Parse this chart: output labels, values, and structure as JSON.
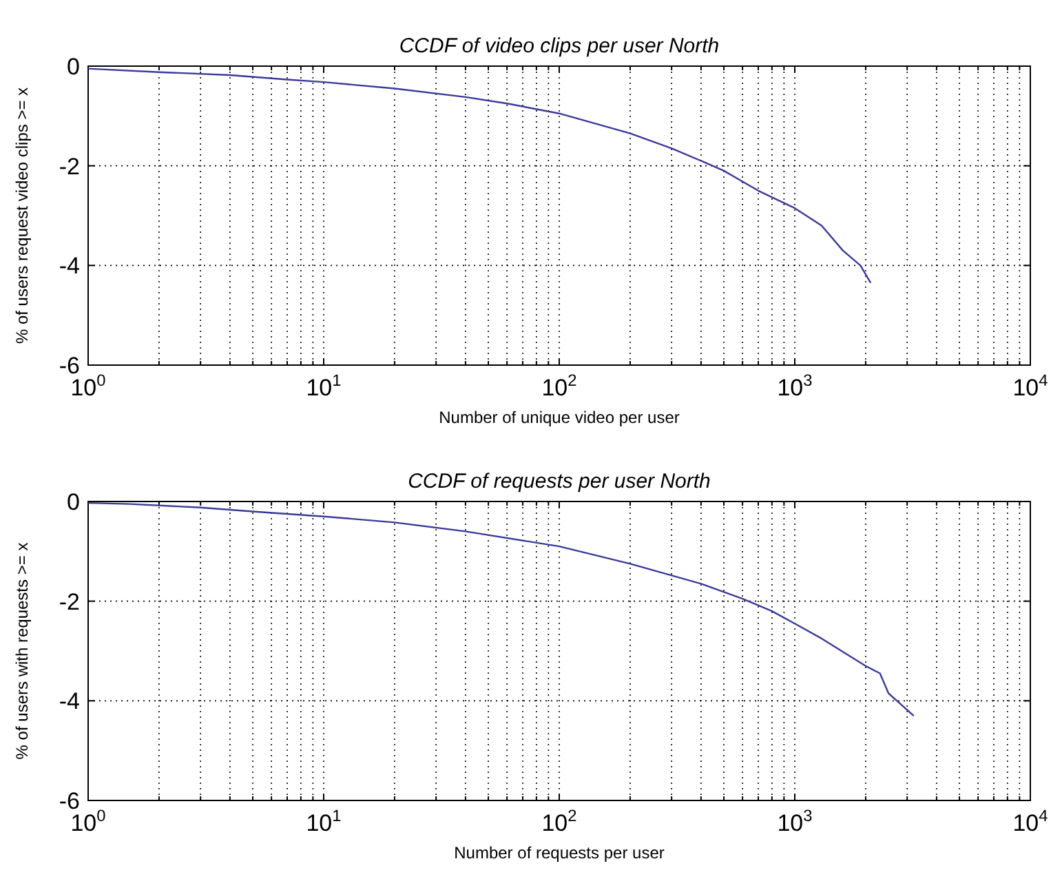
{
  "chart_data": [
    {
      "type": "line",
      "title": "CCDF of video clips per user North",
      "xlabel": "Number of unique video per user",
      "ylabel": "% of users request video clips >= x",
      "log": "x",
      "grid": true,
      "line_style": "solid",
      "xlim": [
        1,
        10000
      ],
      "ylim": [
        -6,
        0
      ],
      "xticks": [
        {
          "value": 1,
          "label": "10$^{0}$"
        },
        {
          "value": 2,
          "label": null
        },
        {
          "value": 3,
          "label": null
        },
        {
          "value": 4,
          "label": null
        },
        {
          "value": 5,
          "label": null
        },
        {
          "value": 6,
          "label": null
        },
        {
          "value": 7,
          "label": null
        },
        {
          "value": 8,
          "label": null
        },
        {
          "value": 9,
          "label": null
        },
        {
          "value": 10,
          "label": "10$^{1}$"
        },
        {
          "value": 20,
          "label": null
        },
        {
          "value": 30,
          "label": null
        },
        {
          "value": 40,
          "label": null
        },
        {
          "value": 50,
          "label": null
        },
        {
          "value": 60,
          "label": null
        },
        {
          "value": 70,
          "label": null
        },
        {
          "value": 80,
          "label": null
        },
        {
          "value": 90,
          "label": null
        },
        {
          "value": 100,
          "label": "10$^{2}$"
        },
        {
          "value": 200,
          "label": null
        },
        {
          "value": 300,
          "label": null
        },
        {
          "value": 400,
          "label": null
        },
        {
          "value": 500,
          "label": null
        },
        {
          "value": 600,
          "label": null
        },
        {
          "value": 700,
          "label": null
        },
        {
          "value": 800,
          "label": null
        },
        {
          "value": 900,
          "label": null
        },
        {
          "value": 1000,
          "label": "10$^{3}$"
        },
        {
          "value": 2000,
          "label": null
        },
        {
          "value": 3000,
          "label": null
        },
        {
          "value": 4000,
          "label": null
        },
        {
          "value": 5000,
          "label": null
        },
        {
          "value": 6000,
          "label": null
        },
        {
          "value": 7000,
          "label": null
        },
        {
          "value": 8000,
          "label": null
        },
        {
          "value": 9000,
          "label": null
        },
        {
          "value": 10000,
          "label": "10$^{4}$"
        }
      ],
      "yticks": [
        -6,
        -4,
        -2,
        0
      ],
      "series": [
        {
          "color": "#3a3a9a",
          "x": [
            1,
            2,
            4,
            7,
            10,
            20,
            40,
            60,
            100,
            200,
            300,
            400,
            500,
            700,
            1000,
            1300,
            1600,
            1900,
            2100
          ],
          "values": [
            -0.05,
            -0.12,
            -0.18,
            -0.27,
            -0.32,
            -0.45,
            -0.62,
            -0.75,
            -0.95,
            -1.35,
            -1.65,
            -1.9,
            -2.1,
            -2.5,
            -2.85,
            -3.2,
            -3.7,
            -4.0,
            -4.35
          ]
        }
      ]
    },
    {
      "type": "line",
      "title": "CCDF of requests per user North",
      "xlabel": "Number of requests per user",
      "ylabel": "% of users with requests >= x",
      "log": "x",
      "grid": true,
      "line_style": "solid",
      "xlim": [
        1,
        10000
      ],
      "ylim": [
        -6,
        0
      ],
      "xticks": [
        {
          "value": 1,
          "label": "10$^{0}$"
        },
        {
          "value": 2,
          "label": null
        },
        {
          "value": 3,
          "label": null
        },
        {
          "value": 4,
          "label": null
        },
        {
          "value": 5,
          "label": null
        },
        {
          "value": 6,
          "label": null
        },
        {
          "value": 7,
          "label": null
        },
        {
          "value": 8,
          "label": null
        },
        {
          "value": 9,
          "label": null
        },
        {
          "value": 10,
          "label": "10$^{1}$"
        },
        {
          "value": 20,
          "label": null
        },
        {
          "value": 30,
          "label": null
        },
        {
          "value": 40,
          "label": null
        },
        {
          "value": 50,
          "label": null
        },
        {
          "value": 60,
          "label": null
        },
        {
          "value": 70,
          "label": null
        },
        {
          "value": 80,
          "label": null
        },
        {
          "value": 90,
          "label": null
        },
        {
          "value": 100,
          "label": "10$^{2}$"
        },
        {
          "value": 200,
          "label": null
        },
        {
          "value": 300,
          "label": null
        },
        {
          "value": 400,
          "label": null
        },
        {
          "value": 500,
          "label": null
        },
        {
          "value": 600,
          "label": null
        },
        {
          "value": 700,
          "label": null
        },
        {
          "value": 800,
          "label": null
        },
        {
          "value": 900,
          "label": null
        },
        {
          "value": 1000,
          "label": "10$^{3}$"
        },
        {
          "value": 2000,
          "label": null
        },
        {
          "value": 3000,
          "label": null
        },
        {
          "value": 4000,
          "label": null
        },
        {
          "value": 5000,
          "label": null
        },
        {
          "value": 6000,
          "label": null
        },
        {
          "value": 7000,
          "label": null
        },
        {
          "value": 8000,
          "label": null
        },
        {
          "value": 9000,
          "label": null
        },
        {
          "value": 10000,
          "label": "10$^{4}$"
        }
      ],
      "yticks": [
        -6,
        -4,
        -2,
        0
      ],
      "series": [
        {
          "color": "#3a3a9a",
          "x": [
            1,
            1.5,
            3,
            5,
            10,
            20,
            40,
            100,
            200,
            400,
            600,
            800,
            1000,
            1300,
            2000,
            2300,
            2500,
            3200
          ],
          "values": [
            -0.03,
            -0.05,
            -0.12,
            -0.2,
            -0.3,
            -0.42,
            -0.6,
            -0.9,
            -1.25,
            -1.65,
            -1.95,
            -2.2,
            -2.45,
            -2.75,
            -3.3,
            -3.45,
            -3.85,
            -4.3
          ]
        }
      ]
    }
  ]
}
